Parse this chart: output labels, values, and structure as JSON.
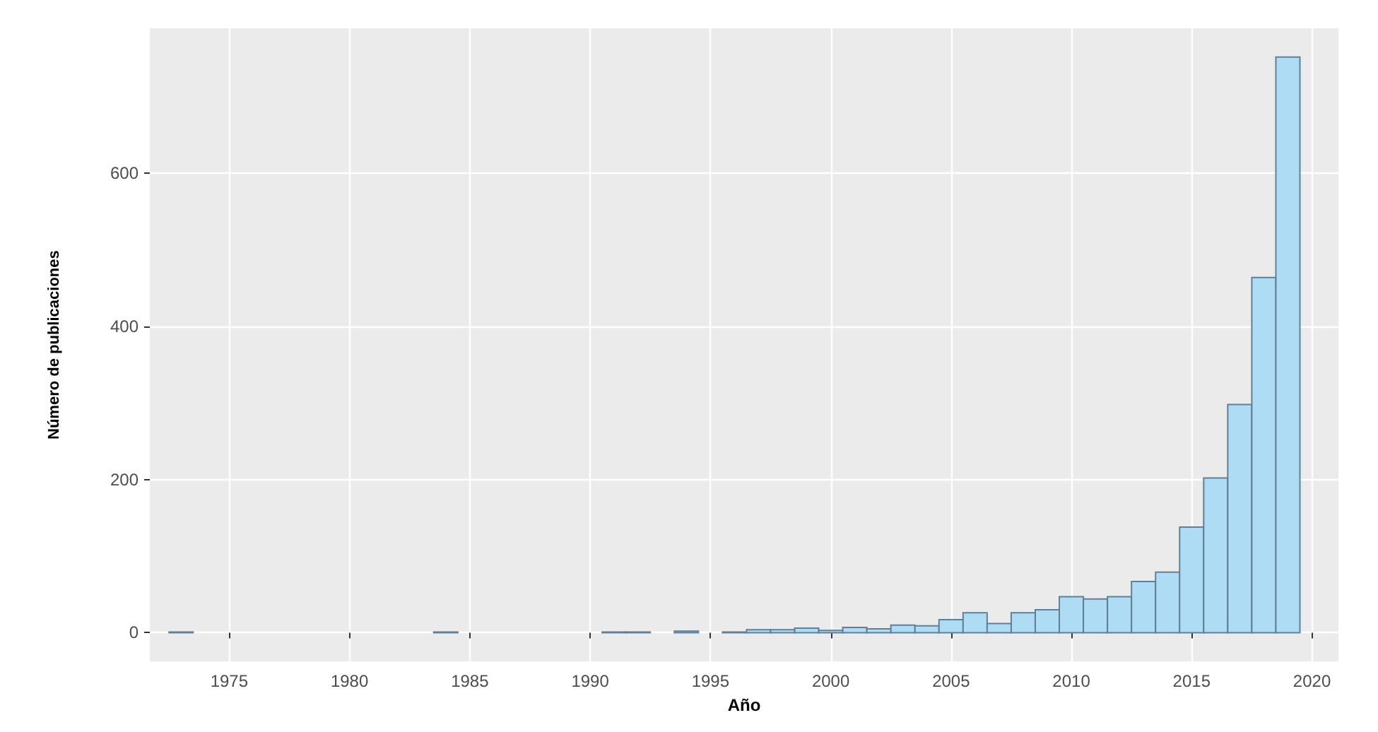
{
  "chart_data": {
    "type": "bar",
    "xlabel": "Año",
    "ylabel": "Número de publicaciones",
    "x": [
      1973,
      1984,
      1991,
      1992,
      1994,
      1996,
      1997,
      1998,
      1999,
      2000,
      2001,
      2002,
      2003,
      2004,
      2005,
      2006,
      2007,
      2008,
      2009,
      2010,
      2011,
      2012,
      2013,
      2014,
      2015,
      2016,
      2017,
      2018,
      2019
    ],
    "values": [
      1,
      1,
      1,
      1,
      2,
      1,
      4,
      4,
      6,
      3,
      7,
      5,
      10,
      9,
      17,
      26,
      12,
      26,
      30,
      47,
      44,
      47,
      67,
      79,
      138,
      202,
      298,
      464,
      752
    ],
    "color": "#aedcf5",
    "xlim": [
      1971.7,
      2021.1
    ],
    "xticks": [
      1975,
      1980,
      1985,
      1990,
      1995,
      2000,
      2005,
      2010,
      2015,
      2020
    ],
    "ylim": [
      -37.6,
      789.6
    ],
    "yticks": [
      0,
      200,
      400,
      600
    ],
    "grid": true
  }
}
